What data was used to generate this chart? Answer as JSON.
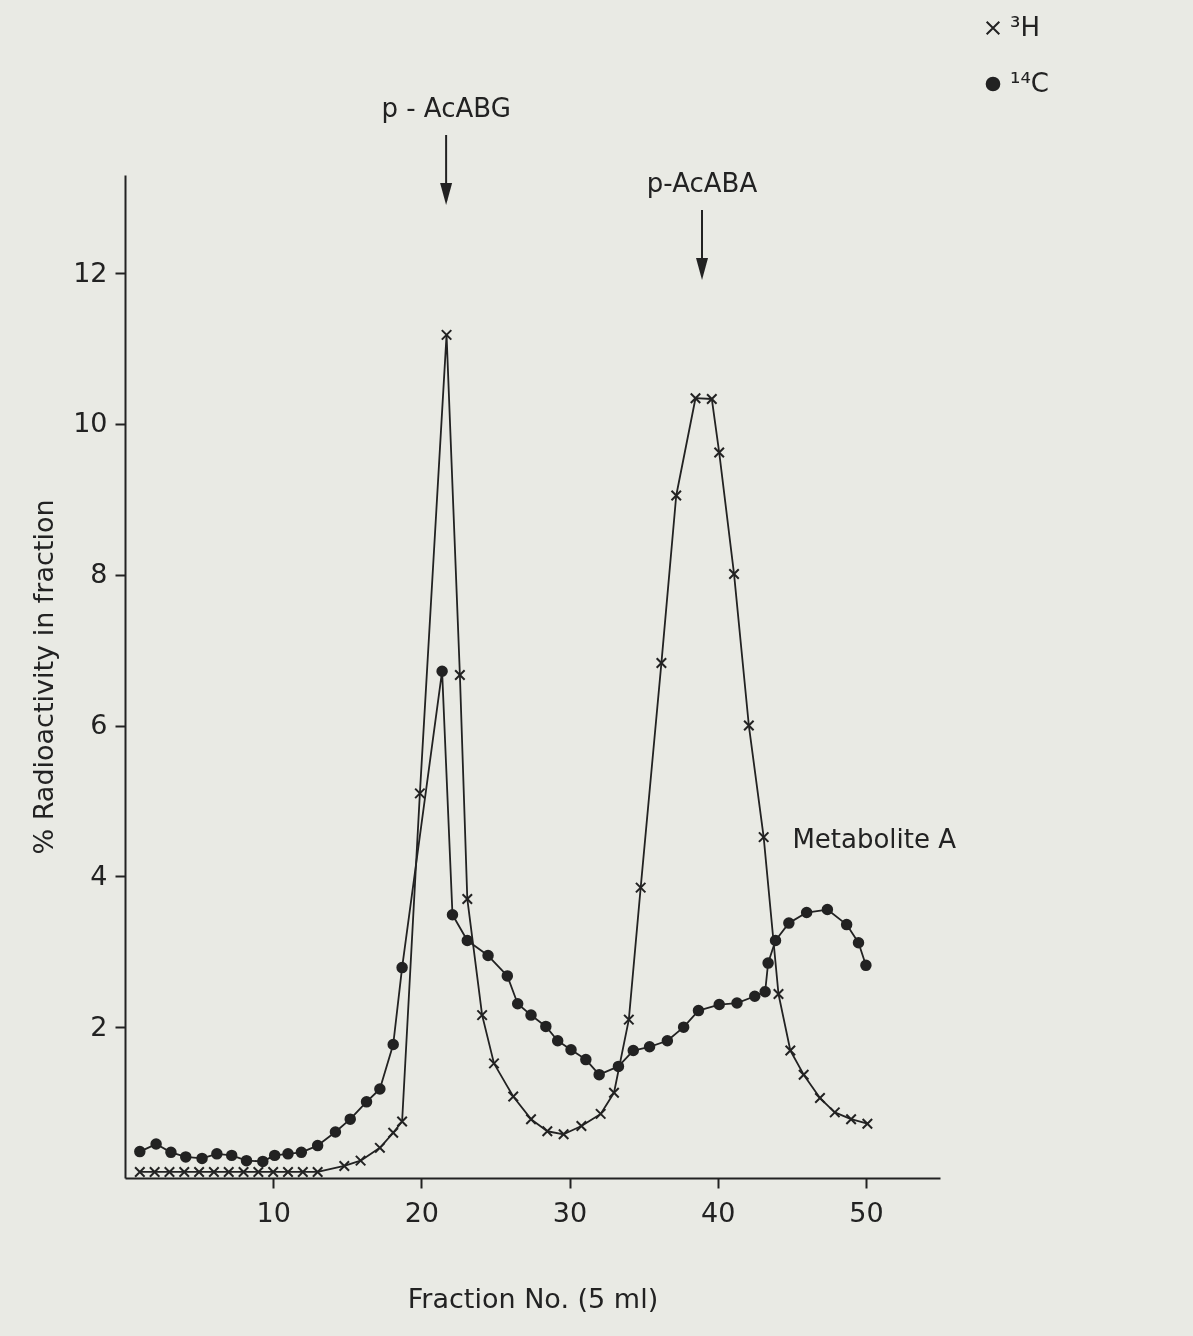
{
  "chart_data": {
    "type": "line",
    "xlabel": "Fraction No. (5 ml)",
    "ylabel": "% Radioactivity in fraction",
    "xlim": [
      0,
      55
    ],
    "ylim": [
      0,
      13.3
    ],
    "xticks": [
      10,
      20,
      30,
      40,
      50
    ],
    "yticks": [
      2,
      4,
      6,
      8,
      10,
      12
    ],
    "grid": false,
    "legend": "top right",
    "line_style": "solid",
    "series": [
      {
        "name": "³H",
        "color": "#222222",
        "marker": "cross",
        "x": [
          1,
          2,
          3,
          4,
          5,
          6,
          7,
          8,
          9,
          10,
          11,
          12,
          13,
          14.8,
          15.9,
          17.2,
          18.1,
          18.7,
          19.9,
          21.7,
          22.6,
          23.1,
          24.1,
          24.9,
          26.2,
          27.4,
          28.5,
          29.6,
          30.8,
          32.1,
          33.0,
          34.0,
          34.8,
          36.2,
          37.2,
          38.5,
          39.6,
          40.1,
          41.1,
          42.1,
          43.1,
          44.1,
          44.9,
          45.8,
          46.9,
          47.9,
          49.0,
          50.1
        ],
        "values": [
          0.08,
          0.08,
          0.08,
          0.08,
          0.08,
          0.08,
          0.08,
          0.08,
          0.08,
          0.08,
          0.08,
          0.08,
          0.08,
          0.16,
          0.23,
          0.4,
          0.6,
          0.75,
          5.1,
          11.18,
          6.67,
          3.7,
          2.16,
          1.52,
          1.08,
          0.78,
          0.62,
          0.58,
          0.69,
          0.85,
          1.13,
          2.1,
          3.85,
          6.83,
          9.05,
          10.34,
          10.33,
          9.62,
          8.01,
          6.0,
          4.52,
          2.44,
          1.69,
          1.37,
          1.06,
          0.87,
          0.78,
          0.72
        ]
      },
      {
        "name": "¹⁴C",
        "color": "#222222",
        "marker": "circle",
        "x": [
          1.0,
          2.1,
          3.1,
          4.1,
          5.2,
          6.2,
          7.2,
          8.2,
          9.3,
          10.1,
          11.0,
          11.9,
          13.0,
          14.2,
          15.2,
          16.3,
          17.2,
          18.1,
          18.7,
          21.4,
          22.1,
          23.1,
          24.5,
          25.8,
          26.5,
          27.4,
          28.4,
          29.2,
          30.1,
          31.1,
          32.0,
          33.3,
          34.3,
          35.4,
          36.6,
          37.7,
          38.7,
          40.1,
          41.3,
          42.5,
          43.2,
          43.4,
          43.9,
          44.8,
          46.0,
          47.4,
          48.7,
          49.5,
          50.0
        ],
        "values": [
          0.35,
          0.45,
          0.34,
          0.28,
          0.26,
          0.32,
          0.3,
          0.23,
          0.22,
          0.3,
          0.32,
          0.34,
          0.43,
          0.61,
          0.78,
          1.01,
          1.18,
          1.77,
          2.79,
          6.72,
          3.49,
          3.15,
          2.95,
          2.68,
          2.31,
          2.16,
          2.01,
          1.82,
          1.7,
          1.57,
          1.37,
          1.48,
          1.69,
          1.74,
          1.82,
          2.0,
          2.22,
          2.3,
          2.32,
          2.41,
          2.47,
          2.85,
          3.15,
          3.38,
          3.52,
          3.56,
          3.36,
          3.12,
          2.82
        ]
      }
    ],
    "annotations": [
      "p - AcABG",
      "p-AcABA",
      {
        "text": "Metabolite A",
        "x": 47.4,
        "y": 3.56
      }
    ]
  }
}
